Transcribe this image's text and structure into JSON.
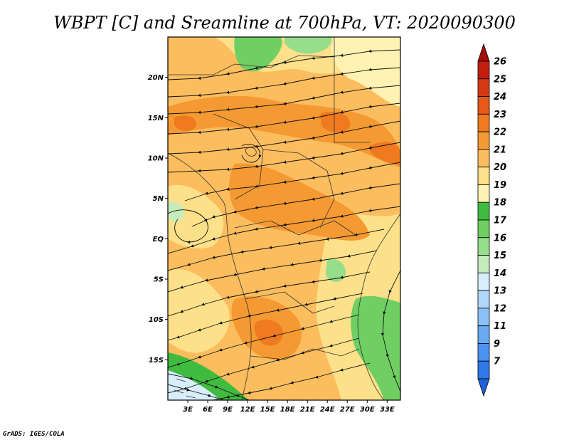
{
  "title": "WBPT [C] and Sreamline at 700hPa, VT: 2020090300",
  "credit": "GrADS: IGES/COLA",
  "map": {
    "lon_range": [
      0,
      35
    ],
    "lat_range": [
      -20,
      25
    ],
    "x_ticks": [
      {
        "value": 3,
        "label": "3E"
      },
      {
        "value": 6,
        "label": "6E"
      },
      {
        "value": 9,
        "label": "9E"
      },
      {
        "value": 12,
        "label": "12E"
      },
      {
        "value": 15,
        "label": "15E"
      },
      {
        "value": 18,
        "label": "18E"
      },
      {
        "value": 21,
        "label": "21E"
      },
      {
        "value": 24,
        "label": "24E"
      },
      {
        "value": 27,
        "label": "27E"
      },
      {
        "value": 30,
        "label": "30E"
      },
      {
        "value": 33,
        "label": "33E"
      }
    ],
    "y_ticks": [
      {
        "value": 20,
        "label": "20N"
      },
      {
        "value": 15,
        "label": "15N"
      },
      {
        "value": 10,
        "label": "10N"
      },
      {
        "value": 5,
        "label": "5N"
      },
      {
        "value": 0,
        "label": "EQ"
      },
      {
        "value": -5,
        "label": "5S"
      },
      {
        "value": -10,
        "label": "10S"
      },
      {
        "value": -15,
        "label": "15S"
      }
    ]
  },
  "colorbar": {
    "levels": [
      "7",
      "9",
      "11",
      "12",
      "13",
      "14",
      "15",
      "16",
      "17",
      "18",
      "19",
      "20",
      "21",
      "22",
      "23",
      "24",
      "25",
      "26"
    ],
    "colors": [
      "#1f60d8",
      "#2f78e8",
      "#4a93f0",
      "#6aaaf5",
      "#8cc0f8",
      "#b0d6fa",
      "#d8eefb",
      "#c6ecbd",
      "#96de8a",
      "#6fcf62",
      "#3fbb3f",
      "#fff2b3",
      "#fde08a",
      "#fbbd5e",
      "#f59a33",
      "#ef7a1f",
      "#e85818",
      "#d63a12",
      "#c41f0e",
      "#a50f0a"
    ]
  }
}
